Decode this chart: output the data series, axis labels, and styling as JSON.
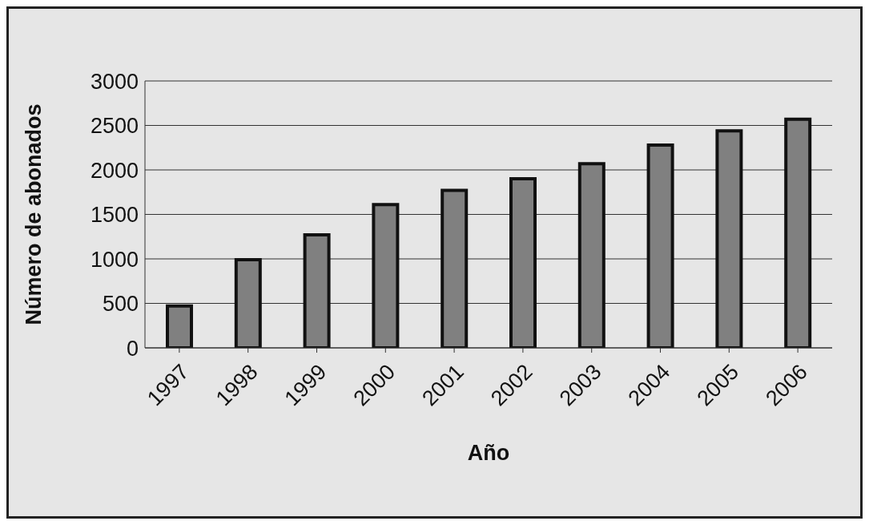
{
  "chart_data": {
    "type": "bar",
    "xlabel": "Año",
    "ylabel": "Número de abonados",
    "categories": [
      "1997",
      "1998",
      "1999",
      "2000",
      "2001",
      "2002",
      "2003",
      "2004",
      "2005",
      "2006"
    ],
    "values": [
      470,
      990,
      1270,
      1610,
      1770,
      1900,
      2070,
      2280,
      2440,
      2570
    ],
    "color": "#808080",
    "ylim": [
      0,
      3000
    ],
    "yticks": [
      0,
      500,
      1000,
      1500,
      2000,
      2500,
      3000
    ],
    "grid": "y"
  }
}
